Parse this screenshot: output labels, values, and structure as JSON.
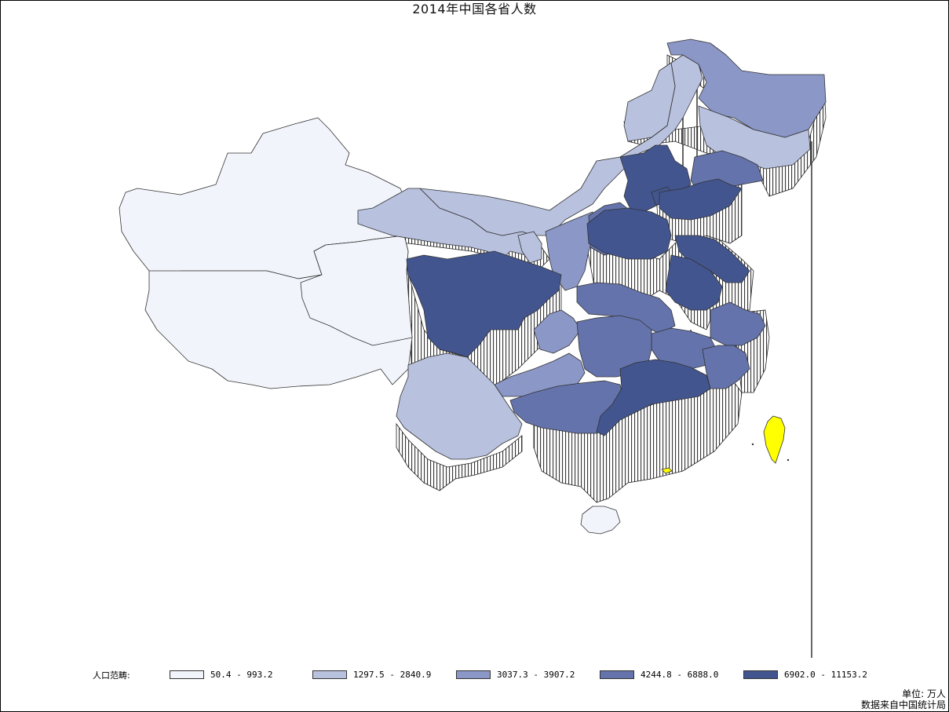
{
  "title": "2014年中国各省人数",
  "legend": {
    "title": "人口范畴:",
    "ranges": [
      {
        "label": "50.4 - 993.2",
        "color": "#f1f4fb"
      },
      {
        "label": "1297.5 - 2840.9",
        "color": "#b8c1de"
      },
      {
        "label": "3037.3 - 3907.2",
        "color": "#8b97c6"
      },
      {
        "label": "4244.8 - 6888.0",
        "color": "#6473ab"
      },
      {
        "label": "6902.0 - 11153.2",
        "color": "#42558f"
      }
    ]
  },
  "highlight_color": "#ffff00",
  "footer": {
    "unit": "单位: 万人",
    "source": "数据来自中国统计局"
  }
}
